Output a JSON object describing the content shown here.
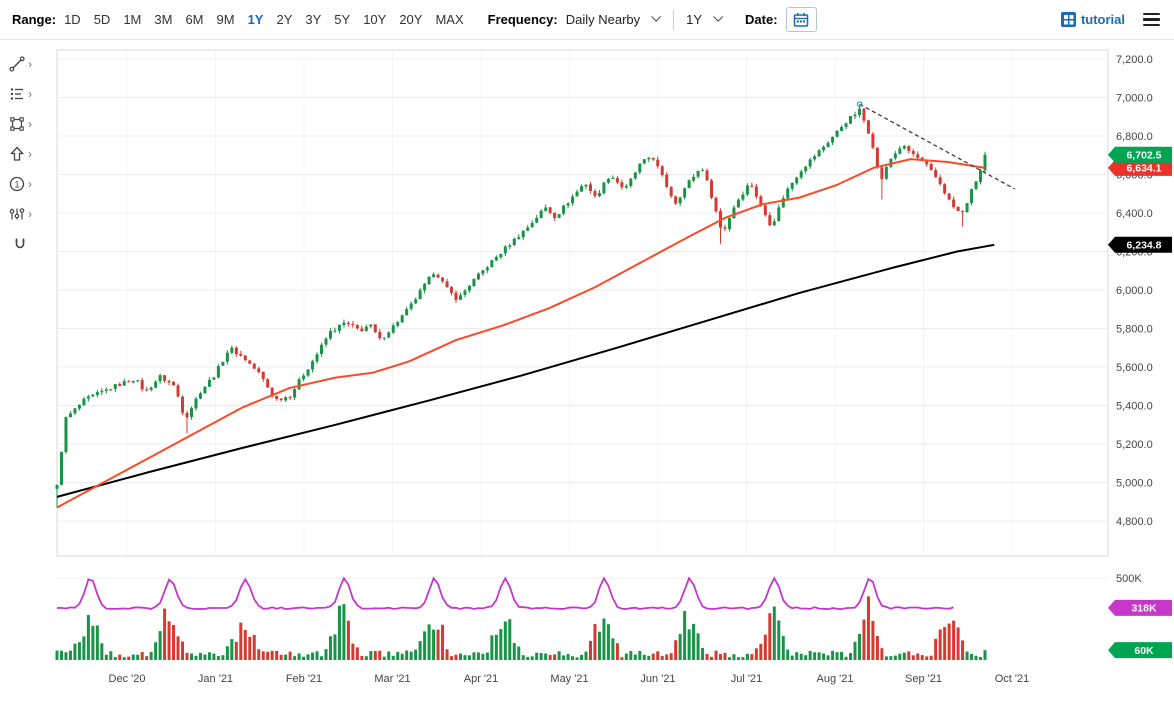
{
  "toolbar": {
    "range_label": "Range:",
    "ranges": [
      "1D",
      "5D",
      "1M",
      "3M",
      "6M",
      "9M",
      "1Y",
      "2Y",
      "3Y",
      "5Y",
      "10Y",
      "20Y",
      "MAX"
    ],
    "active_range": "1Y",
    "frequency_label": "Frequency:",
    "frequency_value": "Daily Nearby",
    "period_value": "1Y",
    "date_label": "Date:",
    "tutorial_label": "tutorial",
    "accent_color": "#1a6bb5"
  },
  "icons": {
    "chevron_right": "›",
    "count_tool_glyph": "1",
    "tool_names": [
      "trendline",
      "annotations",
      "shapes",
      "arrow",
      "numbers",
      "indicators",
      "magnet"
    ],
    "calendar": "calendar-grid",
    "tutorial": "grid-square",
    "hamburger": "three-bars"
  },
  "chart_data": {
    "type": "candlestick",
    "x_axis": {
      "labels": [
        "Dec '20",
        "Jan '21",
        "Feb '21",
        "Mar '21",
        "Apr '21",
        "May '21",
        "Jun '21",
        "Jul '21",
        "Aug '21",
        "Sep '21",
        "Oct '21"
      ]
    },
    "y_axis": {
      "min": 4800,
      "max": 7200,
      "step": 200,
      "labels": [
        "7,200.0",
        "7,000.0",
        "6,800.0",
        "6,600.0",
        "6,400.0",
        "6,200.0",
        "6,000.0",
        "5,800.0",
        "5,600.0",
        "5,400.0",
        "5,200.0",
        "5,000.0",
        "4,800.0"
      ]
    },
    "last_price": 6702.5,
    "candle_count": 208,
    "colors": {
      "up": "#179446",
      "down": "#d6392f",
      "grid": "#ececec",
      "border": "#d9d9d9"
    },
    "price_anchors": [
      [
        0.0,
        4980
      ],
      [
        0.009,
        5330
      ],
      [
        0.03,
        5430
      ],
      [
        0.062,
        5500
      ],
      [
        0.084,
        5540
      ],
      [
        0.095,
        5470
      ],
      [
        0.111,
        5550
      ],
      [
        0.127,
        5500
      ],
      [
        0.138,
        5330
      ],
      [
        0.154,
        5470
      ],
      [
        0.17,
        5560
      ],
      [
        0.186,
        5700
      ],
      [
        0.203,
        5640
      ],
      [
        0.219,
        5560
      ],
      [
        0.235,
        5430
      ],
      [
        0.251,
        5450
      ],
      [
        0.264,
        5550
      ],
      [
        0.278,
        5650
      ],
      [
        0.294,
        5780
      ],
      [
        0.31,
        5830
      ],
      [
        0.327,
        5790
      ],
      [
        0.337,
        5820
      ],
      [
        0.348,
        5740
      ],
      [
        0.364,
        5820
      ],
      [
        0.38,
        5910
      ],
      [
        0.397,
        6030
      ],
      [
        0.407,
        6100
      ],
      [
        0.421,
        6000
      ],
      [
        0.432,
        5950
      ],
      [
        0.445,
        6030
      ],
      [
        0.467,
        6140
      ],
      [
        0.488,
        6240
      ],
      [
        0.51,
        6340
      ],
      [
        0.526,
        6430
      ],
      [
        0.537,
        6380
      ],
      [
        0.553,
        6470
      ],
      [
        0.569,
        6560
      ],
      [
        0.58,
        6480
      ],
      [
        0.596,
        6600
      ],
      [
        0.612,
        6520
      ],
      [
        0.628,
        6650
      ],
      [
        0.641,
        6700
      ],
      [
        0.655,
        6560
      ],
      [
        0.666,
        6450
      ],
      [
        0.682,
        6570
      ],
      [
        0.695,
        6640
      ],
      [
        0.706,
        6480
      ],
      [
        0.717,
        6290
      ],
      [
        0.731,
        6450
      ],
      [
        0.747,
        6560
      ],
      [
        0.76,
        6420
      ],
      [
        0.77,
        6330
      ],
      [
        0.784,
        6500
      ],
      [
        0.801,
        6620
      ],
      [
        0.817,
        6700
      ],
      [
        0.833,
        6780
      ],
      [
        0.849,
        6870
      ],
      [
        0.865,
        6935
      ],
      [
        0.878,
        6780
      ],
      [
        0.887,
        6560
      ],
      [
        0.898,
        6680
      ],
      [
        0.91,
        6750
      ],
      [
        0.924,
        6700
      ],
      [
        0.938,
        6640
      ],
      [
        0.951,
        6560
      ],
      [
        0.964,
        6440
      ],
      [
        0.975,
        6390
      ],
      [
        0.986,
        6520
      ],
      [
        0.997,
        6640
      ],
      [
        1.0,
        6702.5
      ]
    ],
    "wick_marks": [
      {
        "f": 0.0,
        "low": 4870
      },
      {
        "f": 0.138,
        "low": 5255
      },
      {
        "f": 0.717,
        "low": 6240
      },
      {
        "f": 0.865,
        "high": 6960
      },
      {
        "f": 0.887,
        "low": 6470
      },
      {
        "f": 0.975,
        "low": 6330
      }
    ],
    "moving_average_fast": {
      "color": "#fb4a2a",
      "last_value": 6634.1,
      "points": [
        [
          0.0,
          4870
        ],
        [
          0.05,
          5000
        ],
        [
          0.1,
          5130
        ],
        [
          0.15,
          5260
        ],
        [
          0.2,
          5390
        ],
        [
          0.25,
          5490
        ],
        [
          0.3,
          5545
        ],
        [
          0.34,
          5570
        ],
        [
          0.38,
          5630
        ],
        [
          0.43,
          5740
        ],
        [
          0.48,
          5815
        ],
        [
          0.53,
          5905
        ],
        [
          0.58,
          6015
        ],
        [
          0.63,
          6145
        ],
        [
          0.68,
          6275
        ],
        [
          0.72,
          6375
        ],
        [
          0.76,
          6445
        ],
        [
          0.8,
          6480
        ],
        [
          0.84,
          6545
        ],
        [
          0.88,
          6635
        ],
        [
          0.92,
          6680
        ],
        [
          0.96,
          6665
        ],
        [
          1.0,
          6634.1
        ]
      ]
    },
    "moving_average_slow": {
      "color": "#000000",
      "last_value": 6234.8,
      "points": [
        [
          0.0,
          4925
        ],
        [
          0.1,
          5055
        ],
        [
          0.2,
          5180
        ],
        [
          0.3,
          5300
        ],
        [
          0.4,
          5425
        ],
        [
          0.5,
          5555
        ],
        [
          0.6,
          5695
        ],
        [
          0.7,
          5840
        ],
        [
          0.8,
          5985
        ],
        [
          0.9,
          6115
        ],
        [
          0.97,
          6200
        ],
        [
          1.01,
          6234.8
        ]
      ]
    },
    "trendline": {
      "style": "dashed",
      "color": "#3c3c3c",
      "from": [
        0.865,
        6965
      ],
      "to": [
        1.032,
        6525
      ]
    },
    "price_badges": [
      {
        "label": "6,702.5",
        "price": 6702.5,
        "color": "#00a551"
      },
      {
        "label": "6,634.1",
        "price": 6634.1,
        "color": "#e8332a"
      },
      {
        "label": "6,234.8",
        "price": 6234.8,
        "color": "#000000"
      }
    ],
    "volume": {
      "axis_label": "500K",
      "baseline": 316000,
      "spike_value": 497000,
      "last_volume": 60000,
      "line_color": "#c437c8",
      "line_spikes": [
        0.036,
        0.122,
        0.203,
        0.31,
        0.407,
        0.483,
        0.59,
        0.682,
        0.773,
        0.876
      ],
      "bar_spikes": [
        0.034,
        0.12,
        0.201,
        0.308,
        0.405,
        0.481,
        0.588,
        0.68,
        0.771,
        0.874,
        0.962
      ],
      "line_end": 0.968,
      "badges": [
        {
          "label": "318K",
          "value": 318000,
          "color": "#c437c8"
        },
        {
          "label": "60K",
          "value": 60000,
          "color": "#00a551"
        }
      ]
    }
  }
}
